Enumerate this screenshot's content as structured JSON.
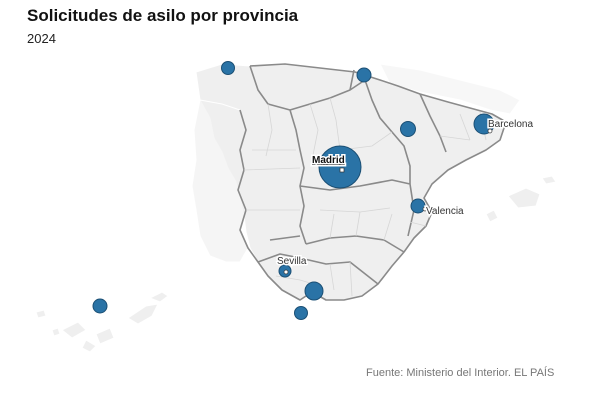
{
  "header": {
    "title": "Solicitudes de asilo por provincia",
    "subtitle": "2024"
  },
  "footer": {
    "source": "Fuente: Ministerio del Interior. EL PAÍS"
  },
  "cities": {
    "madrid": "Madrid",
    "barcelona": "Barcelona",
    "valencia": "Valencia",
    "sevilla": "Sevilla"
  },
  "colors": {
    "bubble": "#2a73a6",
    "land": "#efefef",
    "border": "#8a8a8a"
  }
}
